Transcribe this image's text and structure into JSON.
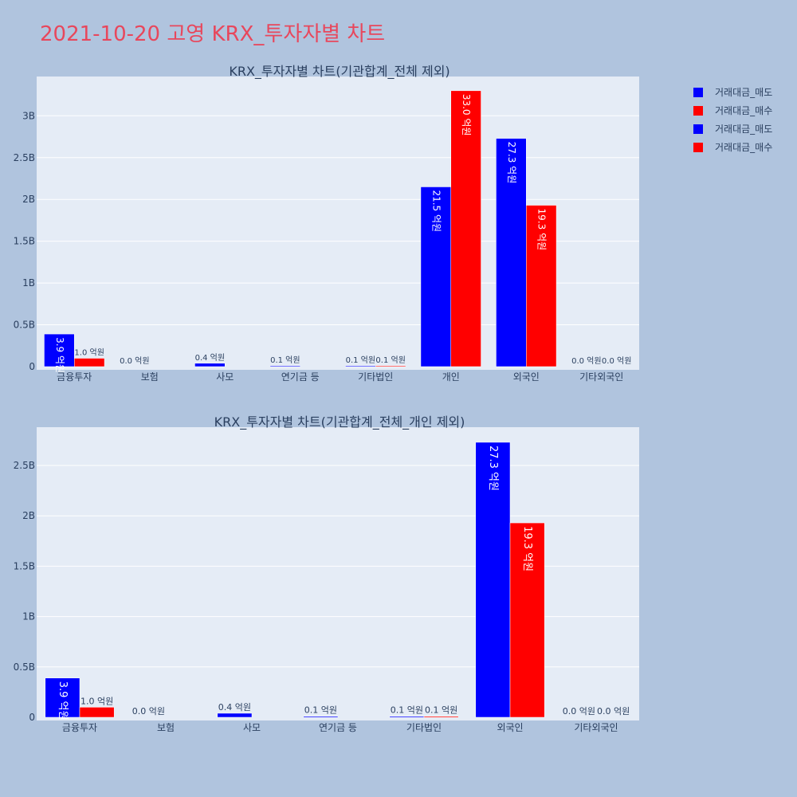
{
  "page_title": "2021-10-20 고영 KRX_투자자별 차트",
  "colors": {
    "sell": "#0000ff",
    "buy": "#ff0000",
    "plot_bg": "#e5ecf6",
    "page_bg": "#b0c4de",
    "title": "#e8475c"
  },
  "legend": {
    "items": [
      {
        "label": "거래대금_매도",
        "color": "#0000ff"
      },
      {
        "label": "거래대금_매수",
        "color": "#ff0000"
      },
      {
        "label": "거래대금_매도",
        "color": "#0000ff"
      },
      {
        "label": "거래대금_매수",
        "color": "#ff0000"
      }
    ]
  },
  "chart_data": [
    {
      "type": "bar",
      "title": "KRX_투자자별 차트(기관합계_전체 제외)",
      "categories": [
        "금융투자",
        "보험",
        "사모",
        "연기금 등",
        "기타법인",
        "개인",
        "외국인",
        "기타외국인"
      ],
      "series": [
        {
          "name": "거래대금_매도",
          "color": "#0000ff",
          "values": [
            390000000,
            0,
            40000000,
            10000000,
            10000000,
            2150000000,
            2730000000,
            0
          ],
          "labels": [
            "3.9 억원",
            "0.0 억원",
            "0.4 억원",
            "0.1 억원",
            "0.1 억원",
            "21.5 억원",
            "27.3 억원",
            "0.0 억원"
          ]
        },
        {
          "name": "거래대금_매수",
          "color": "#ff0000",
          "values": [
            100000000,
            0,
            0,
            0,
            10000000,
            3300000000,
            1930000000,
            0
          ],
          "labels": [
            "1.0 억원",
            "",
            "",
            "",
            "0.1 억원",
            "33.0 억원",
            "19.3 억원",
            "0.0 억원"
          ]
        }
      ],
      "yticks": [
        0,
        500000000,
        1000000000,
        1500000000,
        2000000000,
        2500000000,
        3000000000
      ],
      "ytick_labels": [
        "0",
        "0.5B",
        "1B",
        "1.5B",
        "2B",
        "2.5B",
        "3B"
      ],
      "ylim": [
        0,
        3470000000
      ],
      "grid": true,
      "legend_position": "top-right"
    },
    {
      "type": "bar",
      "title": "KRX_투자자별 차트(기관합계_전체_개인 제외)",
      "categories": [
        "금융투자",
        "보험",
        "사모",
        "연기금 등",
        "기타법인",
        "외국인",
        "기타외국인"
      ],
      "series": [
        {
          "name": "거래대금_매도",
          "color": "#0000ff",
          "values": [
            390000000,
            0,
            40000000,
            10000000,
            10000000,
            2730000000,
            0
          ],
          "labels": [
            "3.9 억원",
            "0.0 억원",
            "0.4 억원",
            "0.1 억원",
            "0.1 억원",
            "27.3 억원",
            "0.0 억원"
          ]
        },
        {
          "name": "거래대금_매수",
          "color": "#ff0000",
          "values": [
            100000000,
            0,
            0,
            0,
            10000000,
            1930000000,
            0
          ],
          "labels": [
            "1.0 억원",
            "",
            "",
            "",
            "0.1 억원",
            "19.3 억원",
            "0.0 억원"
          ]
        }
      ],
      "yticks": [
        0,
        500000000,
        1000000000,
        1500000000,
        2000000000,
        2500000000
      ],
      "ytick_labels": [
        "0",
        "0.5B",
        "1B",
        "1.5B",
        "2B",
        "2.5B"
      ],
      "ylim": [
        0,
        2880000000
      ],
      "grid": true,
      "legend_position": "top-right"
    }
  ]
}
